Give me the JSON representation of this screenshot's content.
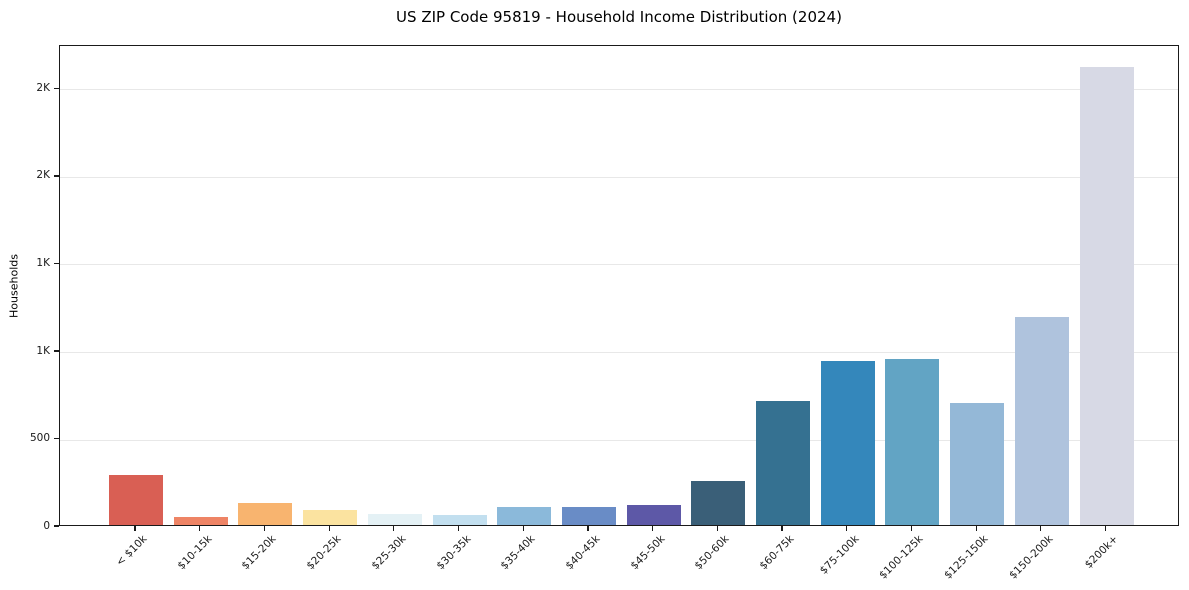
{
  "figure": {
    "title": "US ZIP Code 95819 - Household Income Distribution (2024)"
  },
  "chart_data": {
    "type": "bar",
    "title": "US ZIP Code 95819 - Household Income Distribution (2024)",
    "xlabel": "",
    "ylabel": "Households",
    "ylim": [
      0,
      2748
    ],
    "grid": "horizontal",
    "legend_position": "none",
    "categories": [
      "< $10k",
      "$10-15k",
      "$15-20k",
      "$20-25k",
      "$25-30k",
      "$30-35k",
      "$35-40k",
      "$40-45k",
      "$45-50k",
      "$50-60k",
      "$60-75k",
      "$75-100k",
      "$100-125k",
      "$125-150k",
      "$150-200k",
      "$200k+"
    ],
    "values": [
      285,
      46,
      126,
      88,
      62,
      56,
      105,
      102,
      115,
      250,
      710,
      940,
      950,
      700,
      1188,
      2617
    ],
    "bar_colors": [
      "#d95f54",
      "#ee8465",
      "#f8b46f",
      "#fbe3a0",
      "#e4f1f5",
      "#c2dfef",
      "#8bb9da",
      "#698cc6",
      "#5d58a7",
      "#3a5f78",
      "#357191",
      "#3487bb",
      "#62a4c4",
      "#94b8d7",
      "#afc3dd",
      "#d7d9e5"
    ],
    "y_ticks": [
      {
        "value": 0,
        "label": "0"
      },
      {
        "value": 500,
        "label": "500"
      },
      {
        "value": 1000,
        "label": "1K"
      },
      {
        "value": 1500,
        "label": "1K"
      },
      {
        "value": 2000,
        "label": "2K"
      },
      {
        "value": 2500,
        "label": "2K"
      }
    ]
  },
  "colors": {
    "background": "#ffffff",
    "grid": "#e8e8e8",
    "spine": "#1a1a1a",
    "text": "#000000"
  }
}
